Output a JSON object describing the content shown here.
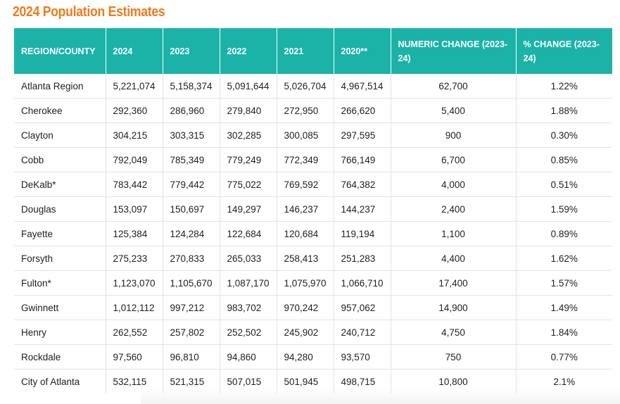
{
  "title": "2024 Population Estimates",
  "headers": [
    "REGION/COUNTY",
    "2024",
    "2023",
    "2022",
    "2021",
    "2020**",
    "NUMERIC CHANGE (2023-24)",
    "% CHANGE (2023-24)"
  ],
  "rows": [
    [
      "Atlanta Region",
      "5,221,074",
      "5,158,374",
      "5,091,644",
      "5,026,704",
      "4,967,514",
      "62,700",
      "1.22%"
    ],
    [
      "Cherokee",
      "292,360",
      "286,960",
      "279,840",
      "272,950",
      "266,620",
      "5,400",
      "1.88%"
    ],
    [
      "Clayton",
      "304,215",
      "303,315",
      "302,285",
      "300,085",
      "297,595",
      "900",
      "0.30%"
    ],
    [
      "Cobb",
      "792,049",
      "785,349",
      "779,249",
      "772,349",
      "766,149",
      "6,700",
      "0.85%"
    ],
    [
      "DeKalb*",
      "783,442",
      "779,442",
      "775,022",
      "769,592",
      "764,382",
      "4,000",
      "0.51%"
    ],
    [
      "Douglas",
      "153,097",
      "150,697",
      "149,297",
      "146,237",
      "144,237",
      "2,400",
      "1.59%"
    ],
    [
      "Fayette",
      "125,384",
      "124,284",
      "122,684",
      "120,684",
      "119,194",
      "1,100",
      "0.89%"
    ],
    [
      "Forsyth",
      "275,233",
      "270,833",
      "265,033",
      "258,413",
      "251,283",
      "4,400",
      "1.62%"
    ],
    [
      "Fulton*",
      "1,123,070",
      "1,105,670",
      "1,087,170",
      "1,075,970",
      "1,066,710",
      "17,400",
      "1.57%"
    ],
    [
      "Gwinnett",
      "1,012,112",
      "997,212",
      "983,702",
      "970,242",
      "957,062",
      "14,900",
      "1.49%"
    ],
    [
      "Henry",
      "262,552",
      "257,802",
      "252,502",
      "245,902",
      "240,712",
      "4,750",
      "1.84%"
    ],
    [
      "Rockdale",
      "97,560",
      "96,810",
      "94,860",
      "94,280",
      "93,570",
      "750",
      "0.77%"
    ],
    [
      "City of Atlanta",
      "532,115",
      "521,315",
      "507,015",
      "501,945",
      "498,715",
      "10,800",
      "2.1%"
    ]
  ],
  "colors": {
    "header_bg": "#1bb3a8",
    "title": "#ef7b1a"
  }
}
